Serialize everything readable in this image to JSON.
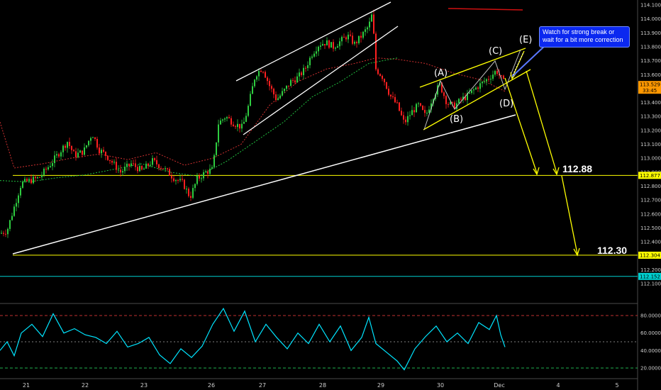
{
  "chart_data": {
    "type": "candlestick",
    "price_axis": {
      "ylim": [
        111.99,
        114.16
      ],
      "ticks": [
        "114.100",
        "114.000",
        "113.900",
        "113.800",
        "113.700",
        "113.600",
        "113.500",
        "113.400",
        "113.300",
        "113.200",
        "113.100",
        "113.000",
        "112.900",
        "112.800",
        "112.700",
        "112.600",
        "112.500",
        "112.400",
        "112.300",
        "112.200",
        "112.100"
      ],
      "current_price": "113.529",
      "countdown": "33:45",
      "level_tags": [
        {
          "price": 112.877,
          "label": "112.877",
          "color": "#ffff00"
        },
        {
          "price": 112.304,
          "label": "112.304",
          "color": "#ffff00"
        },
        {
          "price": 112.152,
          "label": "112.152",
          "color": "#00d0d0"
        }
      ]
    },
    "x_axis": {
      "ticks": [
        "21",
        "22",
        "23",
        "26",
        "27",
        "28",
        "29",
        "30",
        "Dec",
        "4",
        "5"
      ]
    },
    "horizontal_levels": [
      {
        "price": 112.877,
        "color": "#ffff00"
      },
      {
        "price": 112.304,
        "color": "#ffff00"
      },
      {
        "price": 112.152,
        "color": "#00d0d0"
      }
    ],
    "targets": [
      {
        "label": "112.88",
        "price": 112.877
      },
      {
        "label": "112.30",
        "price": 112.304
      }
    ],
    "wave_labels": [
      "(A)",
      "(B)",
      "(C)",
      "(D)",
      "(E)"
    ],
    "annotation": "Watch for strong break or wait for a bit more correction",
    "candle_path": [
      [
        0,
        112.46
      ],
      [
        10,
        112.48
      ],
      [
        30,
        112.82
      ],
      [
        55,
        112.86
      ],
      [
        70,
        112.95
      ],
      [
        85,
        113.05
      ],
      [
        95,
        113.12
      ],
      [
        105,
        113.02
      ],
      [
        118,
        113.05
      ],
      [
        130,
        113.18
      ],
      [
        140,
        113.06
      ],
      [
        150,
        113.02
      ],
      [
        160,
        112.96
      ],
      [
        170,
        112.9
      ],
      [
        185,
        112.96
      ],
      [
        200,
        112.91
      ],
      [
        215,
        112.98
      ],
      [
        230,
        112.93
      ],
      [
        245,
        112.86
      ],
      [
        258,
        112.82
      ],
      [
        268,
        112.72
      ],
      [
        278,
        112.85
      ],
      [
        290,
        112.9
      ],
      [
        300,
        112.92
      ],
      [
        308,
        113.25
      ],
      [
        318,
        113.3
      ],
      [
        330,
        113.25
      ],
      [
        342,
        113.22
      ],
      [
        350,
        113.37
      ],
      [
        360,
        113.6
      ],
      [
        370,
        113.65
      ],
      [
        380,
        113.52
      ],
      [
        390,
        113.42
      ],
      [
        400,
        113.48
      ],
      [
        410,
        113.55
      ],
      [
        420,
        113.58
      ],
      [
        430,
        113.64
      ],
      [
        440,
        113.75
      ],
      [
        450,
        113.82
      ],
      [
        460,
        113.83
      ],
      [
        470,
        113.8
      ],
      [
        480,
        113.84
      ],
      [
        490,
        113.88
      ],
      [
        500,
        113.82
      ],
      [
        510,
        113.88
      ],
      [
        520,
        113.95
      ],
      [
        525,
        114.04
      ],
      [
        530,
        113.64
      ],
      [
        540,
        113.58
      ],
      [
        550,
        113.45
      ],
      [
        560,
        113.38
      ],
      [
        570,
        113.25
      ],
      [
        580,
        113.33
      ],
      [
        590,
        113.38
      ],
      [
        600,
        113.3
      ],
      [
        610,
        113.44
      ],
      [
        620,
        113.53
      ],
      [
        630,
        113.4
      ],
      [
        640,
        113.37
      ],
      [
        650,
        113.42
      ],
      [
        660,
        113.45
      ],
      [
        670,
        113.5
      ],
      [
        680,
        113.54
      ],
      [
        690,
        113.58
      ],
      [
        700,
        113.63
      ],
      [
        706,
        113.58
      ],
      [
        712,
        113.53
      ]
    ],
    "ema_short_path": [
      [
        0,
        113.26
      ],
      [
        20,
        112.93
      ],
      [
        60,
        112.96
      ],
      [
        100,
        113.0
      ],
      [
        140,
        113.03
      ],
      [
        180,
        112.99
      ],
      [
        220,
        113.04
      ],
      [
        260,
        112.95
      ],
      [
        300,
        113.0
      ],
      [
        340,
        113.1
      ],
      [
        380,
        113.38
      ],
      [
        420,
        113.55
      ],
      [
        460,
        113.64
      ],
      [
        500,
        113.68
      ],
      [
        530,
        113.72
      ],
      [
        560,
        113.71
      ],
      [
        600,
        113.68
      ],
      [
        640,
        113.61
      ],
      [
        680,
        113.56
      ],
      [
        712,
        113.48
      ]
    ],
    "ema_long_path": [
      [
        0,
        112.84
      ],
      [
        40,
        112.83
      ],
      [
        80,
        112.86
      ],
      [
        120,
        112.88
      ],
      [
        160,
        112.92
      ],
      [
        200,
        112.96
      ],
      [
        240,
        112.9
      ],
      [
        280,
        112.87
      ],
      [
        320,
        112.98
      ],
      [
        360,
        113.12
      ],
      [
        400,
        113.26
      ],
      [
        440,
        113.44
      ],
      [
        480,
        113.55
      ],
      [
        520,
        113.68
      ],
      [
        560,
        113.72
      ]
    ],
    "rsi": {
      "ticks": [
        "80.0000",
        "60.0000",
        "40.0000",
        "20.0000"
      ],
      "ylim": [
        15,
        95
      ],
      "bands": {
        "upper": 80,
        "mid": 50,
        "lower": 20
      },
      "path": [
        [
          0,
          40
        ],
        [
          10,
          50
        ],
        [
          20,
          34
        ],
        [
          30,
          60
        ],
        [
          45,
          70
        ],
        [
          60,
          56
        ],
        [
          75,
          82
        ],
        [
          90,
          60
        ],
        [
          105,
          65
        ],
        [
          120,
          58
        ],
        [
          135,
          55
        ],
        [
          150,
          48
        ],
        [
          165,
          62
        ],
        [
          180,
          44
        ],
        [
          195,
          48
        ],
        [
          210,
          55
        ],
        [
          225,
          35
        ],
        [
          240,
          25
        ],
        [
          255,
          42
        ],
        [
          270,
          32
        ],
        [
          285,
          45
        ],
        [
          300,
          70
        ],
        [
          315,
          88
        ],
        [
          330,
          62
        ],
        [
          345,
          85
        ],
        [
          360,
          50
        ],
        [
          375,
          70
        ],
        [
          390,
          55
        ],
        [
          405,
          42
        ],
        [
          420,
          60
        ],
        [
          435,
          48
        ],
        [
          450,
          70
        ],
        [
          465,
          50
        ],
        [
          480,
          68
        ],
        [
          495,
          40
        ],
        [
          510,
          55
        ],
        [
          520,
          78
        ],
        [
          530,
          48
        ],
        [
          545,
          38
        ],
        [
          560,
          28
        ],
        [
          570,
          18
        ],
        [
          585,
          42
        ],
        [
          600,
          56
        ],
        [
          615,
          68
        ],
        [
          630,
          50
        ],
        [
          645,
          60
        ],
        [
          660,
          48
        ],
        [
          675,
          72
        ],
        [
          690,
          64
        ],
        [
          700,
          80
        ],
        [
          706,
          58
        ],
        [
          712,
          44
        ]
      ]
    }
  }
}
